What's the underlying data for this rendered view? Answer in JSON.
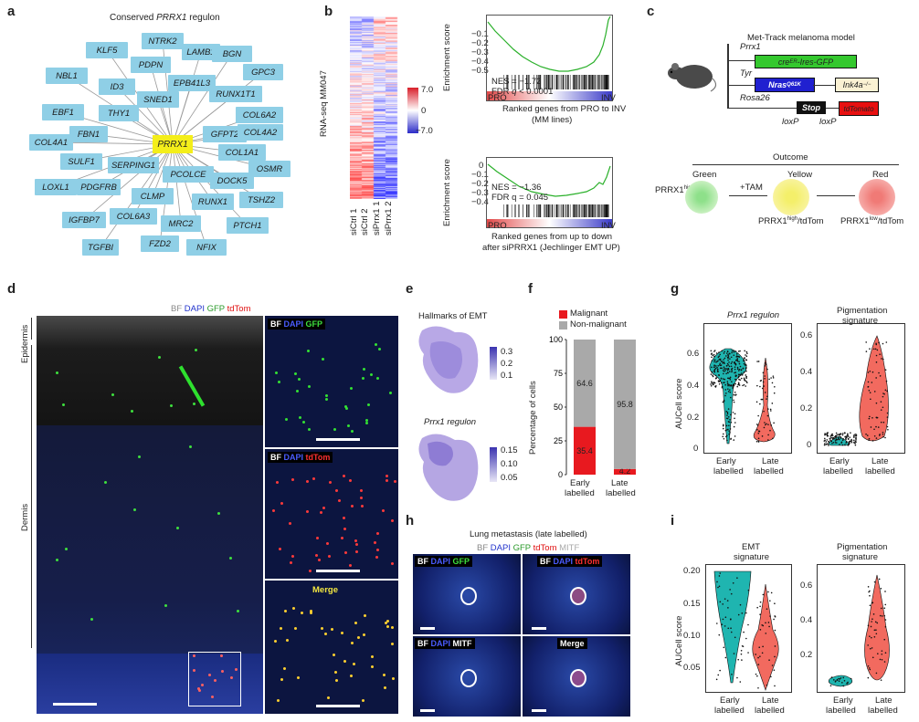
{
  "panels": {
    "a": {
      "label": "a",
      "title_prefix": "Conserved ",
      "title_gene": "PRRX1",
      "title_suffix": " regulon",
      "hub": "PRRX1",
      "nodes": [
        "NTRK2",
        "KLF5",
        "LAMB1",
        "BGN",
        "PDPN",
        "GPC3",
        "NBL1",
        "EPB41L3",
        "ID3",
        "RUNX1T1",
        "SNED1",
        "EBF1",
        "THY1",
        "COL6A2",
        "FBN1",
        "GFPT2",
        "COL4A2",
        "COL4A1",
        "COL1A1",
        "SULF1",
        "SERPING1",
        "OSMR",
        "PCOLCE",
        "DOCK5",
        "LOXL1",
        "PDGFRB",
        "CLMP",
        "TSHZ2",
        "RUNX1",
        "IGFBP7",
        "COL6A3",
        "PTCH1",
        "MRC2",
        "TGFBI",
        "FZD2",
        "NFIX"
      ]
    },
    "b": {
      "label": "b",
      "ylabel": "RNA-seq MM047",
      "columns": [
        "siCtrl 1",
        "siCtrl 2",
        "siPrrx1 1",
        "siPrrx1 2"
      ],
      "colorbar": {
        "max": "7.0",
        "mid": "0",
        "min": "−7.0"
      },
      "gsea1": {
        "ylabel": "Enrichment score",
        "ticks": [
          "−0.1",
          "−0.2",
          "−0.3",
          "−0.4",
          "−0.5"
        ],
        "nes": "NES = −1.72",
        "fdr_prefix": "FDR ",
        "fdr_q": "q",
        "fdr_suffix": " < 0.0001",
        "left": "PRO",
        "right": "INV",
        "caption1": "Ranked genes from PRO to INV",
        "caption2": "(MM lines)"
      },
      "gsea2": {
        "ylabel": "Enrichment score",
        "ticks": [
          "0",
          "−0.1",
          "−0.2",
          "−0.3",
          "−0.4"
        ],
        "nes": "NES = −1.36",
        "fdr": "FDR q = 0.045",
        "left": "PRO",
        "right": "INV",
        "caption1": "Ranked genes from up to down",
        "caption2": "after siPRRX1 (Jechlinger EMT UP)"
      }
    },
    "c": {
      "label": "c",
      "title": "Met-Track melanoma model",
      "prrx1": "Prrx1",
      "cre": "cre",
      "cre_sup": "ER",
      "cre_rest": "-Ires-GFP",
      "tyr": "Tyr",
      "nras": "Nras",
      "nras_sup": "Q61K",
      "ink": "Ink4a",
      "ink_sup": "−/−",
      "rosa": "Rosa26",
      "stop": "Stop",
      "tdtom": "tdTomato",
      "loxp1": "loxP",
      "loxp2": "loxP",
      "outcome": "Outcome",
      "green": "Green",
      "yellow": "Yellow",
      "red": "Red",
      "tam": "+TAM",
      "prrx_high": "PRRX1",
      "prrx_high_sup": "high",
      "yellow_lab": "PRRX1",
      "yellow_lab_sup": "high",
      "yellow_lab_rest": "/tdTom",
      "red_lab": "PRRX1",
      "red_lab_sup": "low",
      "red_lab_rest": "/tdTom"
    },
    "d": {
      "label": "d",
      "legend": [
        "BF",
        "DAPI",
        "GFP",
        "tdTom"
      ],
      "epidermis": "Epidermis",
      "dermis": "Dermis",
      "inset1": [
        "BF",
        "DAPI",
        "GFP"
      ],
      "inset2": [
        "BF",
        "DAPI",
        "tdTom"
      ],
      "inset3": "Merge"
    },
    "e": {
      "label": "e",
      "title1": "Hallmarks of EMT",
      "scale1": [
        "0.3",
        "0.2",
        "0.1"
      ],
      "title2": "Prrx1 regulon",
      "scale2": [
        "0.15",
        "0.10",
        "0.05"
      ]
    },
    "f": {
      "label": "f",
      "legend_malignant": "Malignant",
      "legend_non": "Non-malignant",
      "ylabel": "Percentage of cells",
      "yticks": [
        "100",
        "75",
        "50",
        "25",
        "0"
      ]
    },
    "g": {
      "label": "g",
      "title1": "Prrx1 regulon",
      "title2_l1": "Pigmentation",
      "title2_l2": "signature",
      "ylabel": "AUCell score",
      "yticks1": [
        "0.6",
        "0.4",
        "0.2",
        "0"
      ],
      "yticks2": [
        "0.6",
        "0.4",
        "0.2",
        "0"
      ],
      "x1": [
        "Early",
        "labelled"
      ],
      "x2": [
        "Late",
        "labelled"
      ]
    },
    "h": {
      "label": "h",
      "title": "Lung metastasis (late labelled)",
      "legend": [
        "BF",
        "DAPI",
        "GFP",
        "tdTom",
        "MITF"
      ],
      "p1": [
        "BF",
        "DAPI",
        "GFP"
      ],
      "p2": [
        "BF",
        "DAPI",
        "tdTom"
      ],
      "p3": [
        "BF",
        "DAPI",
        "MITF"
      ],
      "p4": "Merge"
    },
    "i": {
      "label": "i",
      "title1_l1": "EMT",
      "title1_l2": "signature",
      "title2_l1": "Pigmentation",
      "title2_l2": "signature",
      "ylabel": "AUCell score",
      "yticks1": [
        "0.20",
        "0.15",
        "0.10",
        "0.05"
      ],
      "yticks2": [
        "0.6",
        "0.4",
        "0.2"
      ],
      "x1": [
        "Early",
        "labelled"
      ],
      "x2": [
        "Late",
        "labelled"
      ]
    }
  },
  "chart_data": [
    {
      "type": "bar",
      "title": "Percentage of cells (panel f)",
      "categories": [
        "Early labelled",
        "Late labelled"
      ],
      "series": [
        {
          "name": "Malignant",
          "color": "#e8191f",
          "values": [
            35.4,
            4.2
          ]
        },
        {
          "name": "Non-malignant",
          "color": "#a9a9a9",
          "values": [
            64.6,
            95.8
          ]
        }
      ],
      "stacked": true,
      "ylabel": "Percentage of cells",
      "ylim": [
        0,
        100
      ]
    }
  ],
  "colors": {
    "node": "#8fcfe6",
    "hub": "#f4ee1a",
    "teal": "#1fb5b0",
    "salmon": "#f26a5f",
    "malignant": "#e8191f",
    "non_malignant": "#a9a9a9"
  }
}
